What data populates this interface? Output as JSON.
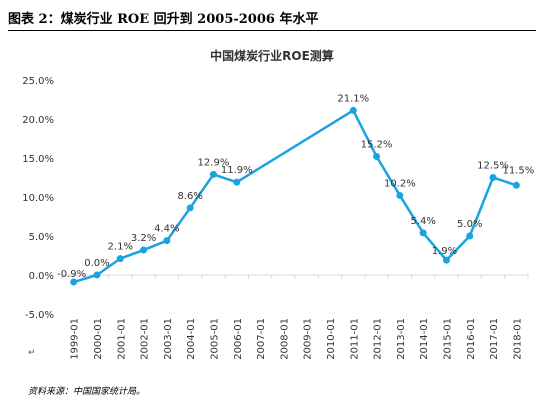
{
  "figure_caption": "图表 2：煤炭行业 ROE 回升到 2005-2006 年水平",
  "source_note": "资料来源：中国国家统计局。",
  "paragraph_mark": "↵",
  "chart_data": {
    "type": "line",
    "title": "中国煤炭行业ROE测算",
    "xlabel": "",
    "ylabel": "",
    "categories": [
      "1999-01",
      "2000-01",
      "2001-01",
      "2002-01",
      "2003-01",
      "2004-01",
      "2005-01",
      "2006-01",
      "2007-01",
      "2008-01",
      "2009-01",
      "2010-01",
      "2011-01",
      "2012-01",
      "2013-01",
      "2014-01",
      "2015-01",
      "2016-01",
      "2017-01",
      "2018-01"
    ],
    "points": [
      {
        "x": "1999-01",
        "y": -0.9,
        "label": "-0.9%"
      },
      {
        "x": "2000-01",
        "y": 0.0,
        "label": "0.0%"
      },
      {
        "x": "2001-01",
        "y": 2.1,
        "label": "2.1%"
      },
      {
        "x": "2002-01",
        "y": 3.2,
        "label": "3.2%"
      },
      {
        "x": "2003-01",
        "y": 4.4,
        "label": "4.4%"
      },
      {
        "x": "2004-01",
        "y": 8.6,
        "label": "8.6%"
      },
      {
        "x": "2005-01",
        "y": 12.9,
        "label": "12.9%"
      },
      {
        "x": "2006-01",
        "y": 11.9,
        "label": "11.9%"
      },
      {
        "x": "2011-01",
        "y": 21.1,
        "label": "21.1%"
      },
      {
        "x": "2012-01",
        "y": 15.2,
        "label": "15.2%"
      },
      {
        "x": "2013-01",
        "y": 10.2,
        "label": "10.2%"
      },
      {
        "x": "2014-01",
        "y": 5.4,
        "label": "5.4%"
      },
      {
        "x": "2015-01",
        "y": 1.9,
        "label": "1.9%"
      },
      {
        "x": "2016-01",
        "y": 5.0,
        "label": "5.0%"
      },
      {
        "x": "2017-01",
        "y": 12.5,
        "label": "12.5%"
      },
      {
        "x": "2018-01",
        "y": 11.5,
        "label": "11.5%"
      }
    ],
    "ylim": [
      -5,
      25
    ],
    "yticks": [
      -5,
      0,
      5,
      10,
      15,
      20,
      25
    ],
    "ytick_labels": [
      "-5.0%",
      "0.0%",
      "5.0%",
      "10.0%",
      "15.0%",
      "20.0%",
      "25.0%"
    ],
    "grid": false,
    "legend": "none",
    "line_color": "#1aa3e0",
    "axis_color": "#d9d9d9"
  }
}
